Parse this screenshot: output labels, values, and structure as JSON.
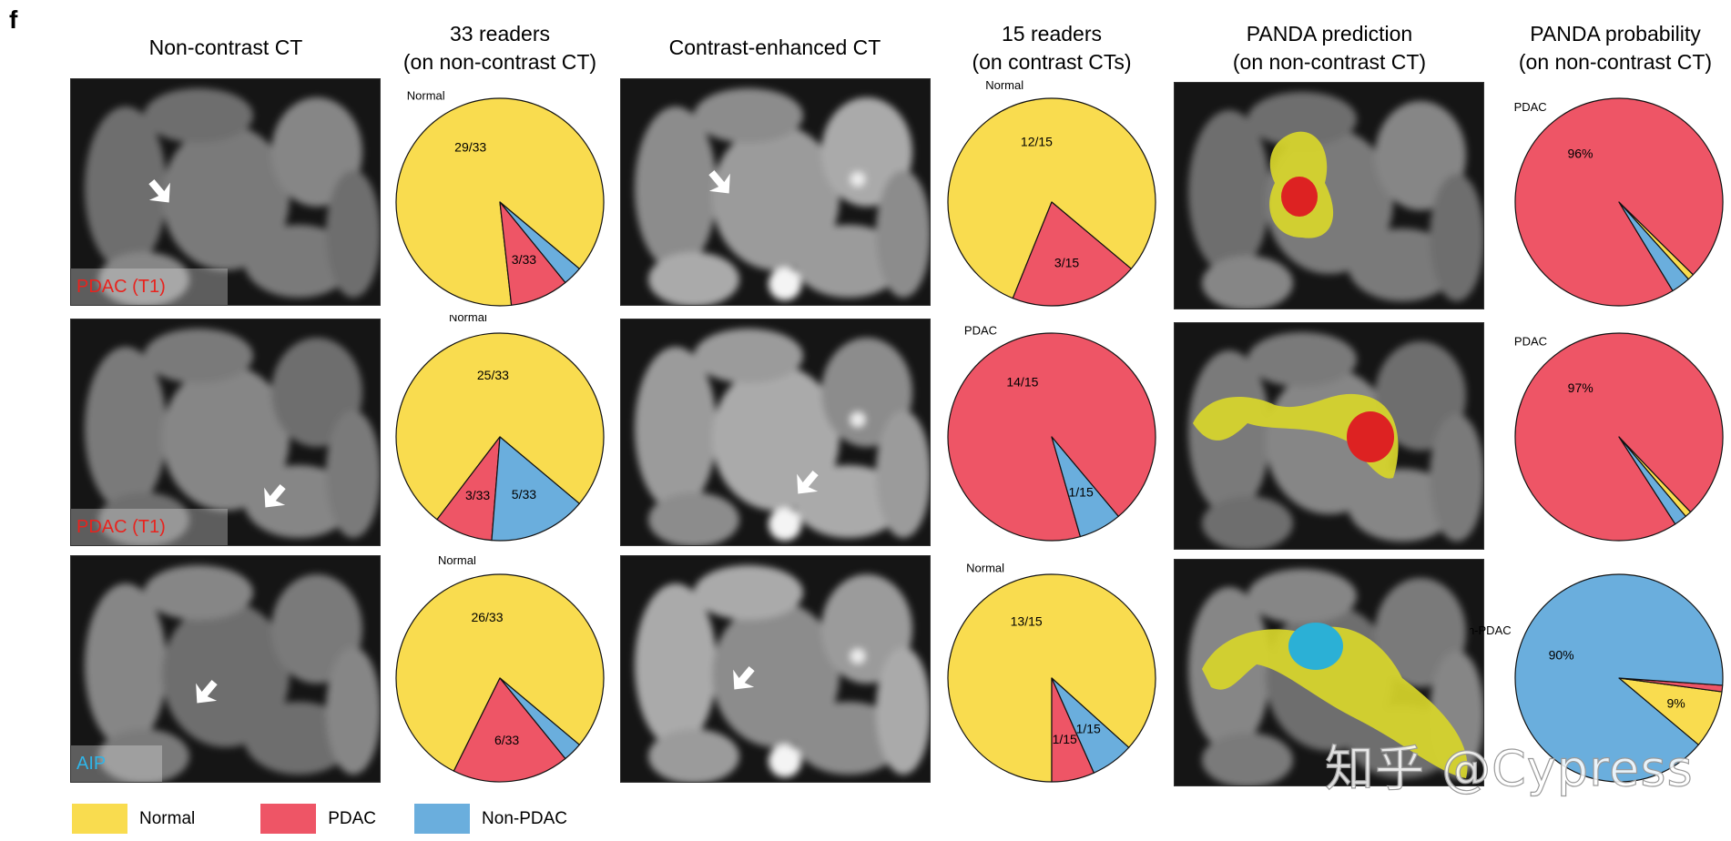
{
  "panel_letter": "f",
  "columns": {
    "ct_noncontrast": "Non-contrast CT",
    "readers33": [
      "33 readers",
      "(on non-contrast CT)"
    ],
    "ct_contrast": "Contrast-enhanced CT",
    "readers15": [
      "15 readers",
      "(on contrast CTs)"
    ],
    "panda_pred": [
      "PANDA prediction",
      "(on non-contrast CT)"
    ],
    "panda_prob": [
      "PANDA probability",
      "(on non-contrast CT)"
    ]
  },
  "colors": {
    "Normal": "#F9DC4F",
    "PDAC": "#EE5566",
    "Non-PDAC": "#6AAEDD",
    "pdac_text": "#E8231E",
    "aip_text": "#2FB5E8"
  },
  "rows": [
    {
      "ct_label": "PDAC (T1)",
      "ct_label_type": "pdac",
      "lesion": "PDAC"
    },
    {
      "ct_label": "PDAC (T1)",
      "ct_label_type": "pdac",
      "lesion": "PDAC"
    },
    {
      "ct_label": "AIP",
      "ct_label_type": "aip",
      "lesion": "Non-PDAC"
    }
  ],
  "chart_data": [
    {
      "type": "pie",
      "row": 1,
      "group": "33 readers (on non-contrast CT)",
      "startangle": -40,
      "outer_label": "Normal",
      "slices": [
        {
          "name": "Normal",
          "value": 29,
          "label": "29/33"
        },
        {
          "name": "PDAC",
          "value": 3,
          "label": "3/33"
        },
        {
          "name": "Non-PDAC",
          "value": 1,
          "label": null
        }
      ]
    },
    {
      "type": "pie",
      "row": 1,
      "group": "15 readers (on contrast CTs)",
      "startangle": -40,
      "outer_label": "Normal",
      "slices": [
        {
          "name": "Normal",
          "value": 12,
          "label": "12/15"
        },
        {
          "name": "PDAC",
          "value": 3,
          "label": "3/15"
        },
        {
          "name": "Non-PDAC",
          "value": 0,
          "label": null
        }
      ]
    },
    {
      "type": "pie",
      "row": 1,
      "group": "PANDA probability (on non-contrast CT)",
      "startangle": -48,
      "outer_label": "PDAC",
      "slices": [
        {
          "name": "Normal",
          "value": 1,
          "label": null
        },
        {
          "name": "PDAC",
          "value": 96,
          "label": "96%"
        },
        {
          "name": "Non-PDAC",
          "value": 3,
          "label": null
        }
      ]
    },
    {
      "type": "pie",
      "row": 2,
      "group": "33 readers (on non-contrast CT)",
      "startangle": -40,
      "outer_label": "Normal",
      "slices": [
        {
          "name": "Normal",
          "value": 25,
          "label": "25/33"
        },
        {
          "name": "PDAC",
          "value": 3,
          "label": "3/33"
        },
        {
          "name": "Non-PDAC",
          "value": 5,
          "label": "5/33"
        }
      ]
    },
    {
      "type": "pie",
      "row": 2,
      "group": "15 readers (on contrast CTs)",
      "startangle": -50,
      "outer_label": "PDAC",
      "slices": [
        {
          "name": "Normal",
          "value": 0,
          "label": null
        },
        {
          "name": "PDAC",
          "value": 14,
          "label": "14/15"
        },
        {
          "name": "Non-PDAC",
          "value": 1,
          "label": "1/15"
        }
      ]
    },
    {
      "type": "pie",
      "row": 2,
      "group": "PANDA probability (on non-contrast CT)",
      "startangle": -50,
      "outer_label": "PDAC",
      "slices": [
        {
          "name": "Normal",
          "value": 1,
          "label": null
        },
        {
          "name": "PDAC",
          "value": 97,
          "label": "97%"
        },
        {
          "name": "Non-PDAC",
          "value": 2,
          "label": null
        }
      ]
    },
    {
      "type": "pie",
      "row": 3,
      "group": "33 readers (on non-contrast CT)",
      "startangle": -40,
      "outer_label": "Normal",
      "slices": [
        {
          "name": "Normal",
          "value": 26,
          "label": "26/33"
        },
        {
          "name": "PDAC",
          "value": 6,
          "label": "6/33"
        },
        {
          "name": "Non-PDAC",
          "value": 1,
          "label": null
        }
      ]
    },
    {
      "type": "pie",
      "row": 3,
      "group": "15 readers (on contrast CTs)",
      "startangle": -42,
      "outer_label": "Normal",
      "slices": [
        {
          "name": "Normal",
          "value": 13,
          "label": "13/15"
        },
        {
          "name": "PDAC",
          "value": 1,
          "label": "1/15"
        },
        {
          "name": "Non-PDAC",
          "value": 1,
          "label": "1/15"
        }
      ]
    },
    {
      "type": "pie",
      "row": 3,
      "group": "PANDA probability (on non-contrast CT)",
      "startangle": -40,
      "outer_label": "Non-PDAC",
      "slices": [
        {
          "name": "Normal",
          "value": 9,
          "label": "9%"
        },
        {
          "name": "PDAC",
          "value": 1,
          "label": null
        },
        {
          "name": "Non-PDAC",
          "value": 90,
          "label": "90%"
        }
      ]
    }
  ],
  "legend": [
    {
      "name": "Normal"
    },
    {
      "name": "PDAC"
    },
    {
      "name": "Non-PDAC"
    }
  ],
  "watermark": "知乎 @Cypress"
}
